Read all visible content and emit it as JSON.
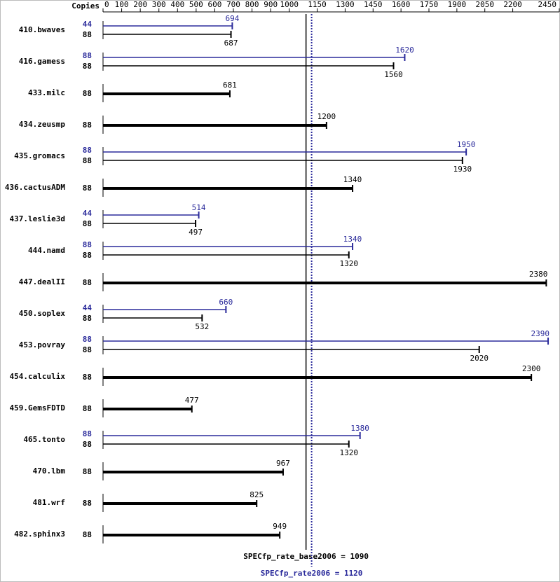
{
  "chart_data": {
    "type": "bar",
    "orientation": "horizontal",
    "copies_label": "Copies",
    "categories": [
      "410.bwaves",
      "416.gamess",
      "433.milc",
      "434.zeusmp",
      "435.gromacs",
      "436.cactusADM",
      "437.leslie3d",
      "444.namd",
      "447.dealII",
      "450.soplex",
      "453.povray",
      "454.calculix",
      "459.GemsFDTD",
      "465.tonto",
      "470.lbm",
      "481.wrf",
      "482.sphinx3"
    ],
    "series": [
      {
        "color": "#2b2b9b",
        "values": [
          694,
          1620,
          null,
          null,
          1950,
          null,
          514,
          1340,
          null,
          660,
          2390,
          null,
          null,
          1380,
          null,
          null,
          null
        ],
        "copies": [
          44,
          88,
          null,
          null,
          88,
          null,
          44,
          88,
          null,
          44,
          88,
          null,
          null,
          88,
          null,
          null,
          null
        ]
      },
      {
        "color": "#000000",
        "values": [
          687,
          1560,
          681,
          1200,
          1930,
          1340,
          497,
          1320,
          2380,
          532,
          2020,
          2300,
          477,
          1320,
          967,
          825,
          949
        ],
        "copies": [
          88,
          88,
          88,
          88,
          88,
          88,
          88,
          88,
          88,
          88,
          88,
          88,
          88,
          88,
          88,
          88,
          88
        ]
      }
    ],
    "xlim": [
      0,
      2450
    ],
    "xticks": [
      0,
      100,
      200,
      300,
      400,
      500,
      600,
      700,
      800,
      900,
      1000,
      1150,
      1300,
      1450,
      1600,
      1750,
      1900,
      2050,
      2200,
      2450
    ],
    "reference_lines": [
      {
        "label": "SPECfp_rate_base2006 = 1090",
        "value": 1090,
        "color": "#000000",
        "dashed": false
      },
      {
        "label": "SPECfp_rate2006 = 1120",
        "value": 1120,
        "color": "#2b2b9b",
        "dashed": true
      }
    ]
  }
}
